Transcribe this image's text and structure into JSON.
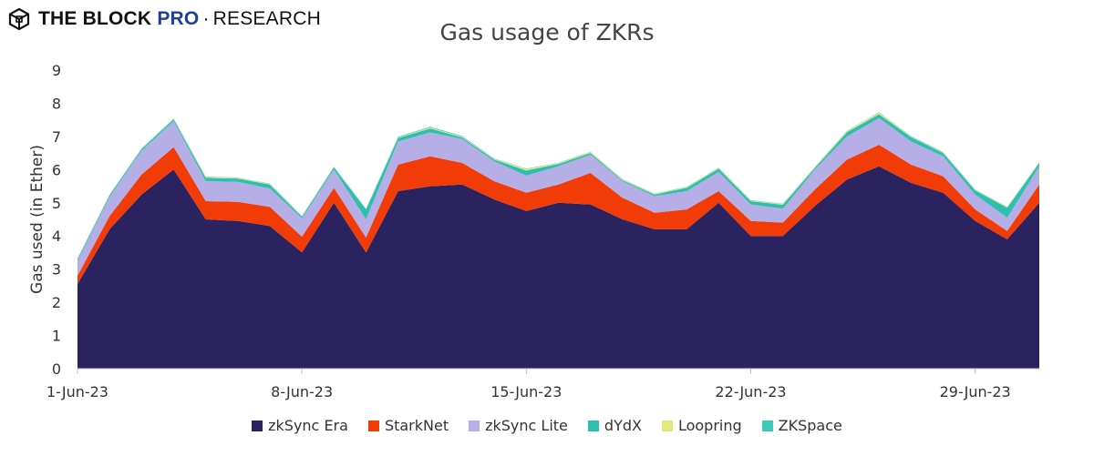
{
  "brand": {
    "name": "THE BLOCK",
    "pro": "PRO",
    "separator": "·",
    "research": "RESEARCH",
    "logo_icon": "cube-icon"
  },
  "chart_data": {
    "type": "area",
    "stacked": true,
    "title": "Gas usage of ZKRs",
    "ylabel": "Gas used (in Ether)",
    "xlabel": "",
    "ylim": [
      0,
      9
    ],
    "yticks": [
      "0",
      "1",
      "2",
      "3",
      "4",
      "5",
      "6",
      "7",
      "8",
      "9"
    ],
    "x_start": "2023-06-01",
    "xticks": [
      "1-Jun-23",
      "8-Jun-23",
      "15-Jun-23",
      "22-Jun-23",
      "29-Jun-23"
    ],
    "grid": false,
    "legend_position": "bottom",
    "x": [
      "2023-06-01",
      "2023-06-02",
      "2023-06-03",
      "2023-06-04",
      "2023-06-05",
      "2023-06-06",
      "2023-06-07",
      "2023-06-08",
      "2023-06-09",
      "2023-06-10",
      "2023-06-11",
      "2023-06-12",
      "2023-06-13",
      "2023-06-14",
      "2023-06-15",
      "2023-06-16",
      "2023-06-17",
      "2023-06-18",
      "2023-06-19",
      "2023-06-20",
      "2023-06-21",
      "2023-06-22",
      "2023-06-23",
      "2023-06-24",
      "2023-06-25",
      "2023-06-26",
      "2023-06-27",
      "2023-06-28",
      "2023-06-29",
      "2023-06-30",
      "2023-07-01"
    ],
    "series": [
      {
        "name": "zkSync Era",
        "color": "#2b2360",
        "values": [
          2.55,
          4.2,
          5.25,
          6.0,
          4.5,
          4.45,
          4.3,
          3.5,
          5.0,
          3.5,
          5.35,
          5.5,
          5.55,
          5.1,
          4.75,
          5.0,
          4.95,
          4.5,
          4.2,
          4.2,
          5.0,
          4.0,
          4.0,
          4.9,
          5.7,
          6.1,
          5.6,
          5.3,
          4.45,
          3.9,
          5.0
        ]
      },
      {
        "name": "StarkNet",
        "color": "#f23c07",
        "values": [
          0.25,
          0.4,
          0.6,
          0.68,
          0.55,
          0.58,
          0.58,
          0.48,
          0.45,
          0.45,
          0.8,
          0.9,
          0.65,
          0.55,
          0.55,
          0.55,
          0.95,
          0.65,
          0.5,
          0.6,
          0.35,
          0.45,
          0.4,
          0.5,
          0.6,
          0.65,
          0.55,
          0.5,
          0.35,
          0.25,
          0.55
        ]
      },
      {
        "name": "zkSync Lite",
        "color": "#b6aee6",
        "values": [
          0.45,
          0.58,
          0.72,
          0.78,
          0.6,
          0.6,
          0.55,
          0.55,
          0.55,
          0.55,
          0.7,
          0.72,
          0.72,
          0.6,
          0.52,
          0.55,
          0.55,
          0.5,
          0.5,
          0.55,
          0.58,
          0.5,
          0.42,
          0.6,
          0.7,
          0.8,
          0.7,
          0.6,
          0.45,
          0.4,
          0.55
        ]
      },
      {
        "name": "dYdX",
        "color": "#2fbfb0",
        "values": [
          0.05,
          0.05,
          0.05,
          0.05,
          0.1,
          0.1,
          0.12,
          0.05,
          0.07,
          0.3,
          0.1,
          0.12,
          0.05,
          0.05,
          0.15,
          0.07,
          0.05,
          0.03,
          0.05,
          0.1,
          0.1,
          0.1,
          0.12,
          0.05,
          0.13,
          0.12,
          0.13,
          0.1,
          0.12,
          0.3,
          0.1
        ]
      },
      {
        "name": "Loopring",
        "color": "#e3e87a",
        "values": [
          0.01,
          0.01,
          0.01,
          0.01,
          0.03,
          0.02,
          0.02,
          0.01,
          0.01,
          0.01,
          0.02,
          0.03,
          0.02,
          0.02,
          0.05,
          0.02,
          0.03,
          0.02,
          0.02,
          0.02,
          0.02,
          0.02,
          0.02,
          0.02,
          0.03,
          0.05,
          0.02,
          0.02,
          0.02,
          0.02,
          0.02
        ]
      },
      {
        "name": "ZKSpace",
        "color": "#3ec9b8",
        "values": [
          0.01,
          0.01,
          0.01,
          0.02,
          0.01,
          0.01,
          0.01,
          0.01,
          0.01,
          0.01,
          0.02,
          0.02,
          0.02,
          0.01,
          0.01,
          0.01,
          0.01,
          0.01,
          0.01,
          0.01,
          0.01,
          0.01,
          0.01,
          0.01,
          0.01,
          0.01,
          0.01,
          0.01,
          0.01,
          0.01,
          0.01
        ]
      }
    ]
  }
}
